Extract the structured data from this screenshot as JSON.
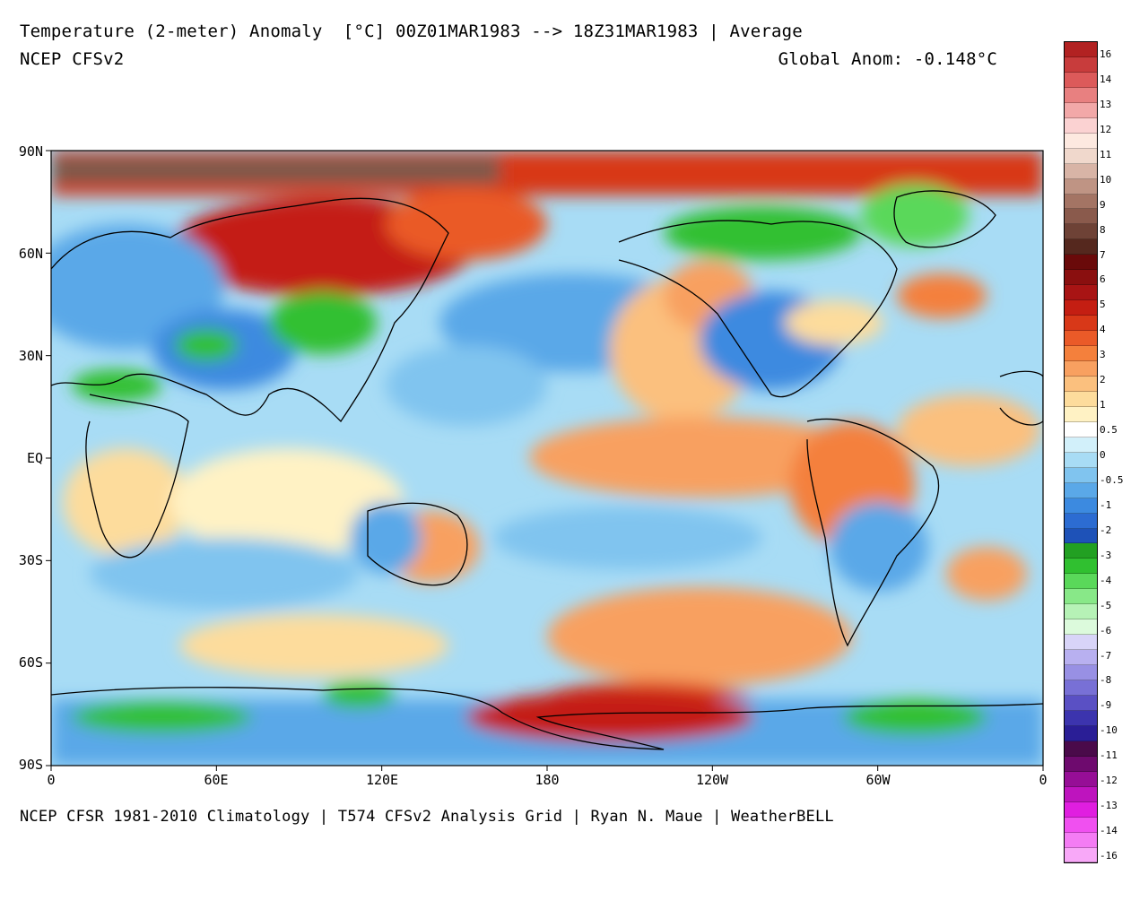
{
  "header": {
    "title": "Temperature (2-meter) Anomaly  [°C] 00Z01MAR1983 --> 18Z31MAR1983 | Average",
    "model": "NCEP CFSv2",
    "global_anom": "Global Anom: -0.148°C"
  },
  "footer": "NCEP CFSR 1981-2010 Climatology | T574 CFSv2 Analysis Grid | Ryan N. Maue | WeatherBELL",
  "axes": {
    "lat_labels": [
      "90N",
      "60N",
      "30N",
      "EQ",
      "30S",
      "60S",
      "90S"
    ],
    "lon_labels": [
      "0",
      "60E",
      "120E",
      "180",
      "120W",
      "60W",
      "0"
    ]
  },
  "colorbar": {
    "labels": [
      "16",
      "14",
      "13",
      "12",
      "11",
      "10",
      "9",
      "8",
      "7",
      "6",
      "5",
      "4",
      "3",
      "2",
      "1",
      "0.5",
      "0",
      "-0.5",
      "-1",
      "-2",
      "-3",
      "-4",
      "-5",
      "-6",
      "-7",
      "-8",
      "-9",
      "-10",
      "-11",
      "-12",
      "-13",
      "-14",
      "-16"
    ],
    "colors": [
      "#b22222",
      "#c83c3c",
      "#dc5a5a",
      "#e88080",
      "#f2a8a8",
      "#fbd2d2",
      "#fde9e0",
      "#f0d8cc",
      "#d8b4a6",
      "#bf9484",
      "#a47464",
      "#8a5a4c",
      "#6e4236",
      "#55281e",
      "#6a0a0a",
      "#8a0f0f",
      "#a81414",
      "#c41e12",
      "#d83818",
      "#ea5a28",
      "#f4803c",
      "#f8a060",
      "#fbc07e",
      "#fddc9c",
      "#fff2c4",
      "#ffffff",
      "#d2f0fa",
      "#a8dcf5",
      "#80c4ef",
      "#5aa8e8",
      "#3c8ae0",
      "#2c6cd2",
      "#1e52b8",
      "#22a022",
      "#30c030",
      "#5ad85a",
      "#88e888",
      "#b6f2b6",
      "#dcfadc",
      "#d8d4f8",
      "#b8b0f0",
      "#9890e4",
      "#7870d6",
      "#5a50c4",
      "#3c34ae",
      "#2a1e96",
      "#4a0a4a",
      "#6e0a6e",
      "#960e96",
      "#be14be",
      "#e01ee0",
      "#f050f0",
      "#f47cf4",
      "#f8a8f8"
    ]
  }
}
